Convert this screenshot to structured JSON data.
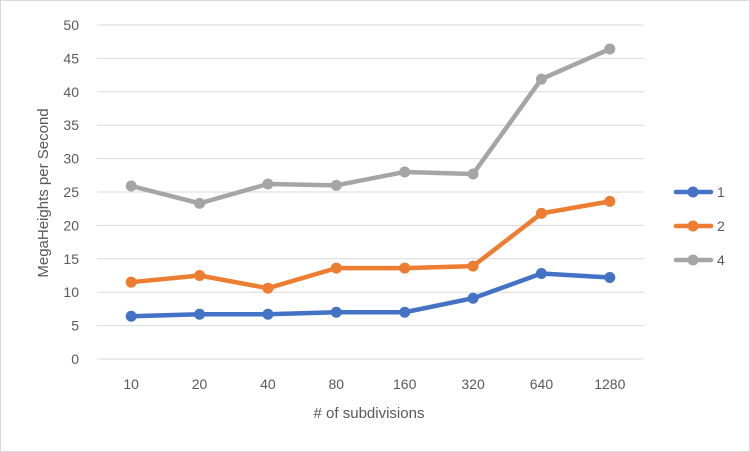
{
  "chart_data": {
    "type": "line",
    "categories": [
      "10",
      "20",
      "40",
      "80",
      "160",
      "320",
      "640",
      "1280"
    ],
    "series": [
      {
        "name": "1",
        "color": "#4472C4",
        "values": [
          6.4,
          6.7,
          6.7,
          7.0,
          7.0,
          9.1,
          12.8,
          12.2
        ]
      },
      {
        "name": "2",
        "color": "#ED7D31",
        "values": [
          11.5,
          12.5,
          10.6,
          13.6,
          13.6,
          13.9,
          21.8,
          23.6
        ]
      },
      {
        "name": "4",
        "color": "#A5A5A5",
        "values": [
          25.9,
          23.3,
          26.2,
          26.0,
          28.0,
          27.7,
          41.9,
          46.4
        ]
      }
    ],
    "xlabel": "# of subdivisions",
    "ylabel": "MegaHeights per Second",
    "ylim": [
      0,
      50
    ],
    "yticks": [
      0,
      5,
      10,
      15,
      20,
      25,
      30,
      35,
      40,
      45,
      50
    ],
    "grid": true,
    "legend_position": "right"
  }
}
